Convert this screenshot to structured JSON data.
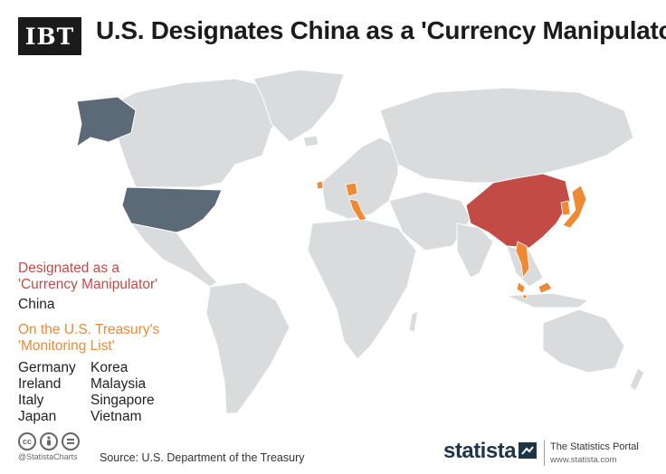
{
  "header": {
    "logo": "IBT",
    "title": "U.S. Designates China as a 'Currency Manipulator'"
  },
  "legend": {
    "designated_title_line1": "Designated as a",
    "designated_title_line2": "'Currency Manipulator'",
    "designated": [
      "China"
    ],
    "monitoring_title_line1": "On the U.S. Treasury's",
    "monitoring_title_line2": "'Monitoring List'",
    "monitoring": [
      "Germany",
      "Korea",
      "Ireland",
      "Malaysia",
      "Italy",
      "Singapore",
      "Japan",
      "Vietnam"
    ]
  },
  "colors": {
    "land": "#d9dbdd",
    "usa": "#5c6a78",
    "designated": "#c24b46",
    "monitoring": "#ed8a33"
  },
  "footer": {
    "license_icons": [
      "cc-icon",
      "by-icon",
      "nd-icon"
    ],
    "cc": "cc",
    "handle": "@StatistaCharts",
    "source": "Source: U.S. Department of the Treasury",
    "brand": "statista",
    "portal": "The Statistics Portal",
    "portal_url": "www.statista.com"
  }
}
